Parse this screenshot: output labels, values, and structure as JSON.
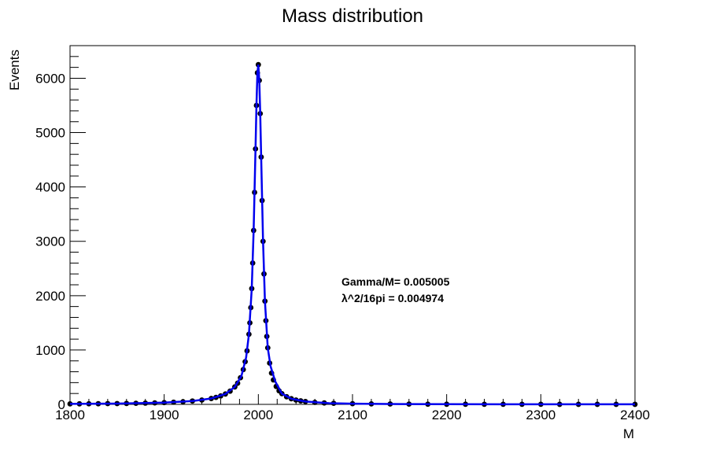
{
  "chart_data": {
    "type": "scatter",
    "title": "Mass distribution",
    "xlabel": "M",
    "ylabel": "Events",
    "xlim": [
      1800,
      2400
    ],
    "ylim": [
      0,
      6600
    ],
    "x_ticks": [
      "1800",
      "1900",
      "2000",
      "2100",
      "2200",
      "2300",
      "2400"
    ],
    "y_ticks": [
      "0",
      "1000",
      "2000",
      "3000",
      "4000",
      "5000",
      "6000"
    ],
    "annotations": [
      "Gamma/M= 0.005005",
      "λ^2/16pi = 0.004974"
    ],
    "grid": false,
    "legend": "none",
    "series": [
      {
        "kind": "points",
        "color": "#000000",
        "x": [
          1800,
          1810,
          1820,
          1830,
          1840,
          1850,
          1860,
          1870,
          1880,
          1890,
          1900,
          1910,
          1920,
          1930,
          1940,
          1950,
          1955,
          1960,
          1965,
          1970,
          1975,
          1978,
          1981,
          1984,
          1986,
          1988,
          1990,
          1991,
          1992,
          1993,
          1994,
          1995,
          1996,
          1997,
          1998,
          1999,
          2000,
          2001,
          2002,
          2003,
          2004,
          2005,
          2006,
          2007,
          2008,
          2009,
          2010,
          2012,
          2014,
          2016,
          2019,
          2022,
          2025,
          2030,
          2035,
          2040,
          2045,
          2050,
          2060,
          2070,
          2080,
          2100,
          2120,
          2140,
          2160,
          2180,
          2200,
          2220,
          2240,
          2260,
          2280,
          2300,
          2320,
          2340,
          2360,
          2380,
          2400
        ],
        "y": [
          9,
          10,
          11,
          12,
          14,
          15,
          17,
          20,
          23,
          27,
          33,
          40,
          49,
          62,
          80,
          108,
          128,
          155,
          191,
          243,
          321,
          390,
          490,
          640,
          785,
          985,
          1290,
          1500,
          1780,
          2130,
          2600,
          3200,
          3900,
          4700,
          5500,
          6100,
          6250,
          5960,
          5350,
          4550,
          3750,
          3000,
          2400,
          1900,
          1540,
          1250,
          1040,
          760,
          575,
          450,
          330,
          250,
          197,
          140,
          104,
          80,
          64,
          52,
          36,
          26,
          20,
          13,
          9,
          7,
          5,
          4,
          3,
          3,
          2,
          2,
          2,
          2,
          1,
          1,
          1,
          1,
          1
        ]
      },
      {
        "kind": "fit-line",
        "color": "#0000ee",
        "x": [
          1800,
          1850,
          1900,
          1930,
          1950,
          1965,
          1975,
          1982,
          1987,
          1990,
          1993,
          1995,
          1997,
          1998,
          1999,
          2000,
          2001,
          2002,
          2003,
          2005,
          2007,
          2010,
          2013,
          2018,
          2025,
          2035,
          2050,
          2075,
          2100,
          2150,
          2200,
          2300,
          2400
        ],
        "y": [
          9,
          15,
          33,
          62,
          108,
          191,
          321,
          520,
          860,
          1290,
          2130,
          3200,
          4700,
          5500,
          6100,
          6250,
          5960,
          5350,
          4550,
          3000,
          1900,
          1040,
          700,
          420,
          197,
          104,
          52,
          22,
          13,
          6,
          3,
          2,
          1
        ]
      }
    ]
  }
}
